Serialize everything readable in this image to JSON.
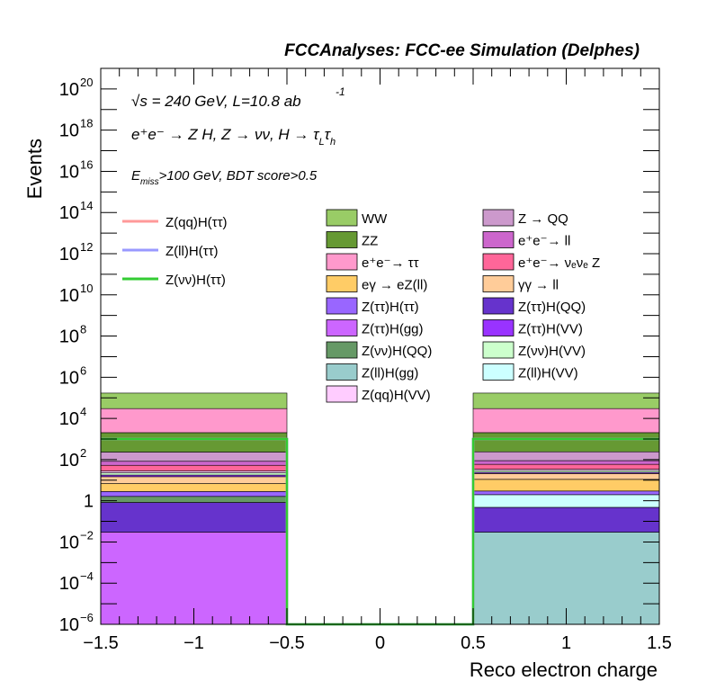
{
  "chart_data": {
    "type": "bar",
    "title": "FCCAnalyses: FCC-ee Simulation (Delphes)",
    "xlabel": "Reco electron charge",
    "ylabel": "Events",
    "xlim": [
      -1.5,
      1.5
    ],
    "ylim": [
      1e-06,
      1e+21
    ],
    "yscale": "log",
    "stacked": true,
    "x_ticks": [
      "−1.5",
      "−1",
      "−0.5",
      "0",
      "0.5",
      "1",
      "1.5"
    ],
    "y_ticks": [
      {
        "base": "10",
        "exp": "−6"
      },
      {
        "base": "10",
        "exp": "−4"
      },
      {
        "base": "10",
        "exp": "−2"
      },
      {
        "base": "1",
        "exp": ""
      },
      {
        "base": "10",
        "exp": "2"
      },
      {
        "base": "10",
        "exp": "4"
      },
      {
        "base": "10",
        "exp": "6"
      },
      {
        "base": "10",
        "exp": "8"
      },
      {
        "base": "10",
        "exp": "10"
      },
      {
        "base": "10",
        "exp": "12"
      },
      {
        "base": "10",
        "exp": "14"
      },
      {
        "base": "10",
        "exp": "16"
      },
      {
        "base": "10",
        "exp": "18"
      },
      {
        "base": "10",
        "exp": "20"
      }
    ],
    "annotations": {
      "line1": {
        "sqrt": "√s",
        "text": " = 240 GeV, L=10.8 ab",
        "sup": "-1"
      },
      "line2": "e⁺e⁻ → Z H, Z → νν, H → τ",
      "line2_sub1": "L",
      "line2_tau2": "τ",
      "line2_sub2": "h",
      "line3_E": "E",
      "line3_sub": "miss",
      "line3_rest": ">100 GeV, BDT score>0.5"
    },
    "bins": [
      {
        "x_low": -1.5,
        "x_high": -0.5
      },
      {
        "x_low": -0.5,
        "x_high": 0.5
      },
      {
        "x_low": 0.5,
        "x_high": 1.5
      }
    ],
    "stack_series": [
      {
        "name": "Z(ττ)H(gg)",
        "color": "#cc66ff",
        "values": [
          0.03,
          0,
          0
        ]
      },
      {
        "name": "Z(ll)H(gg)",
        "color": "#99cccc",
        "values": [
          0,
          0,
          0.03
        ]
      },
      {
        "name": "Z(ττ)H(QQ)",
        "color": "#6633cc",
        "values": [
          0.8,
          0,
          0.45
        ]
      },
      {
        "name": "Z(ll)H(VV)",
        "color": "#ccffff",
        "values": [
          0,
          0,
          1.5
        ]
      },
      {
        "name": "Z(νν)H(QQ)",
        "color": "#669966",
        "values": [
          0.8,
          0,
          0
        ]
      },
      {
        "name": "Z(ττ)H(ττ)",
        "color": "#9966ff",
        "values": [
          1.2,
          0,
          1.0
        ]
      },
      {
        "name": "eγ → eZ(ll)",
        "color": "#ffcc66",
        "values": [
          4,
          0,
          8
        ]
      },
      {
        "name": "γγ → ll",
        "color": "#ffcc99",
        "values": [
          8,
          0,
          10
        ]
      },
      {
        "name": "Z(ττ)H(VV)",
        "color": "#9933ff",
        "values": [
          3,
          0,
          3
        ]
      },
      {
        "name": "Z(νν)H(VV)",
        "color": "#ccffcc",
        "values": [
          5,
          0,
          5
        ]
      },
      {
        "name": "Z(qq)H(VV)",
        "color": "#ffccff",
        "values": [
          5,
          0,
          5
        ]
      },
      {
        "name": "e⁺e⁻→ νₑνₑ Z",
        "color": "#ff6699",
        "values": [
          25,
          0,
          25
        ]
      },
      {
        "name": "e⁺e⁻→ ll",
        "color": "#cc66cc",
        "values": [
          30,
          0,
          30
        ]
      },
      {
        "name": "Z → QQ",
        "color": "#cc99cc",
        "values": [
          150,
          0,
          150
        ]
      },
      {
        "name": "ZZ",
        "color": "#669933",
        "values": [
          1800,
          0,
          1800
        ]
      },
      {
        "name": "e⁺e⁻→ ττ",
        "color": "#ff99cc",
        "values": [
          28000,
          0,
          28000
        ]
      },
      {
        "name": "WW",
        "color": "#99cc66",
        "values": [
          140000,
          0,
          140000
        ]
      }
    ],
    "signal_series": [
      {
        "name": "Z(qq)H(ττ)",
        "color": "#ff9999",
        "values": [
          1000,
          0,
          1000
        ]
      },
      {
        "name": "Z(ll)H(ττ)",
        "color": "#9999ff",
        "values": [
          1000,
          0,
          1000
        ]
      },
      {
        "name": "Z(νν)H(ττ)",
        "color": "#33cc33",
        "values": [
          1000,
          0,
          1000
        ]
      }
    ],
    "legend_signal": [
      {
        "label": "Z(qq)H(ττ)",
        "color": "#ff9999"
      },
      {
        "label": "Z(ll)H(ττ)",
        "color": "#9999ff"
      },
      {
        "label": "Z(νν)H(ττ)",
        "color": "#33cc33"
      }
    ],
    "legend_bkg": [
      {
        "label": "WW",
        "color": "#99cc66"
      },
      {
        "label": "Z → QQ",
        "color": "#cc99cc"
      },
      {
        "label": "ZZ",
        "color": "#669933"
      },
      {
        "label": "e⁺e⁻→ ll",
        "color": "#cc66cc"
      },
      {
        "label": "e⁺e⁻→ ττ",
        "color": "#ff99cc"
      },
      {
        "label": "e⁺e⁻→ νₑνₑ Z",
        "color": "#ff6699"
      },
      {
        "label": "eγ → eZ(ll)",
        "color": "#ffcc66"
      },
      {
        "label": "γγ → ll",
        "color": "#ffcc99"
      },
      {
        "label": "Z(ττ)H(ττ)",
        "color": "#9966ff"
      },
      {
        "label": "Z(ττ)H(QQ)",
        "color": "#6633cc"
      },
      {
        "label": "Z(ττ)H(gg)",
        "color": "#cc66ff"
      },
      {
        "label": "Z(ττ)H(VV)",
        "color": "#9933ff"
      },
      {
        "label": "Z(νν)H(QQ)",
        "color": "#669966"
      },
      {
        "label": "Z(νν)H(VV)",
        "color": "#ccffcc"
      },
      {
        "label": "Z(ll)H(gg)",
        "color": "#99cccc"
      },
      {
        "label": "Z(ll)H(VV)",
        "color": "#ccffff"
      },
      {
        "label": "Z(qq)H(VV)",
        "color": "#ffccff"
      }
    ]
  }
}
